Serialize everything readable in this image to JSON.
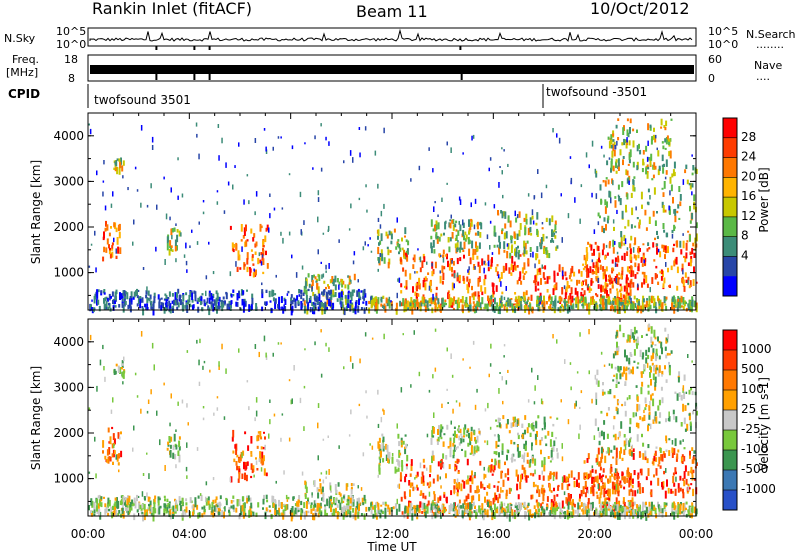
{
  "header": {
    "station": "Rankin Inlet (fitACF)",
    "beam": "Beam 11",
    "date": "10/Oct/2012"
  },
  "status_panels": {
    "nsky_label": "N.Sky",
    "nsearch_label": "N.Search",
    "nsearch_dots": "........",
    "freq_label_1": "Freq.",
    "freq_label_2": "[MHz]",
    "nave_label": "Nave",
    "nave_dots": "....",
    "cpid_label": "CPID",
    "nsky_ticks": [
      "10^5",
      "10^0"
    ],
    "nsearch_ticks": [
      "10^5",
      "10^0"
    ],
    "freq_ticks": [
      "18",
      "8"
    ],
    "nave_ticks": [
      "60",
      "0"
    ],
    "cpid_segments": [
      {
        "label": "twofsound 3501",
        "start_hour": 0
      },
      {
        "label": "twofsound -3501",
        "start_hour": 18
      }
    ]
  },
  "chart_data": [
    {
      "type": "heatmap",
      "ylabel": "Slant Range [km]",
      "xlabel": "",
      "ylim": [
        180,
        4500
      ],
      "yticks": [
        "1000",
        "2000",
        "3000",
        "4000"
      ],
      "colorbar_label": "Power [dB]",
      "colorbar_ticks": [
        "28",
        "24",
        "20",
        "16",
        "12",
        "8",
        "4"
      ],
      "colors": [
        "#0000ff",
        "#2846a8",
        "#3c8c78",
        "#5ab846",
        "#c8c800",
        "#ffb400",
        "#ff7800",
        "#ff3c00",
        "#ff0000"
      ]
    },
    {
      "type": "heatmap",
      "ylabel": "Slant Range [km]",
      "xlabel": "Time UT",
      "ylim": [
        180,
        4500
      ],
      "yticks": [
        "1000",
        "2000",
        "3000",
        "4000"
      ],
      "xticks": [
        "00:00",
        "04:00",
        "08:00",
        "12:00",
        "16:00",
        "20:00",
        "00:00"
      ],
      "colorbar_label": "Velocity [m s-1]",
      "colorbar_ticks": [
        "1000",
        "500",
        "100",
        "25",
        "-25",
        "-100",
        "-500",
        "-1000"
      ],
      "colors": [
        "#2850c8",
        "#3c78b4",
        "#3c9650",
        "#78c83c",
        "#c8c8c8",
        "#ffa000",
        "#ff7800",
        "#ff3c00",
        "#ff0000"
      ]
    }
  ]
}
